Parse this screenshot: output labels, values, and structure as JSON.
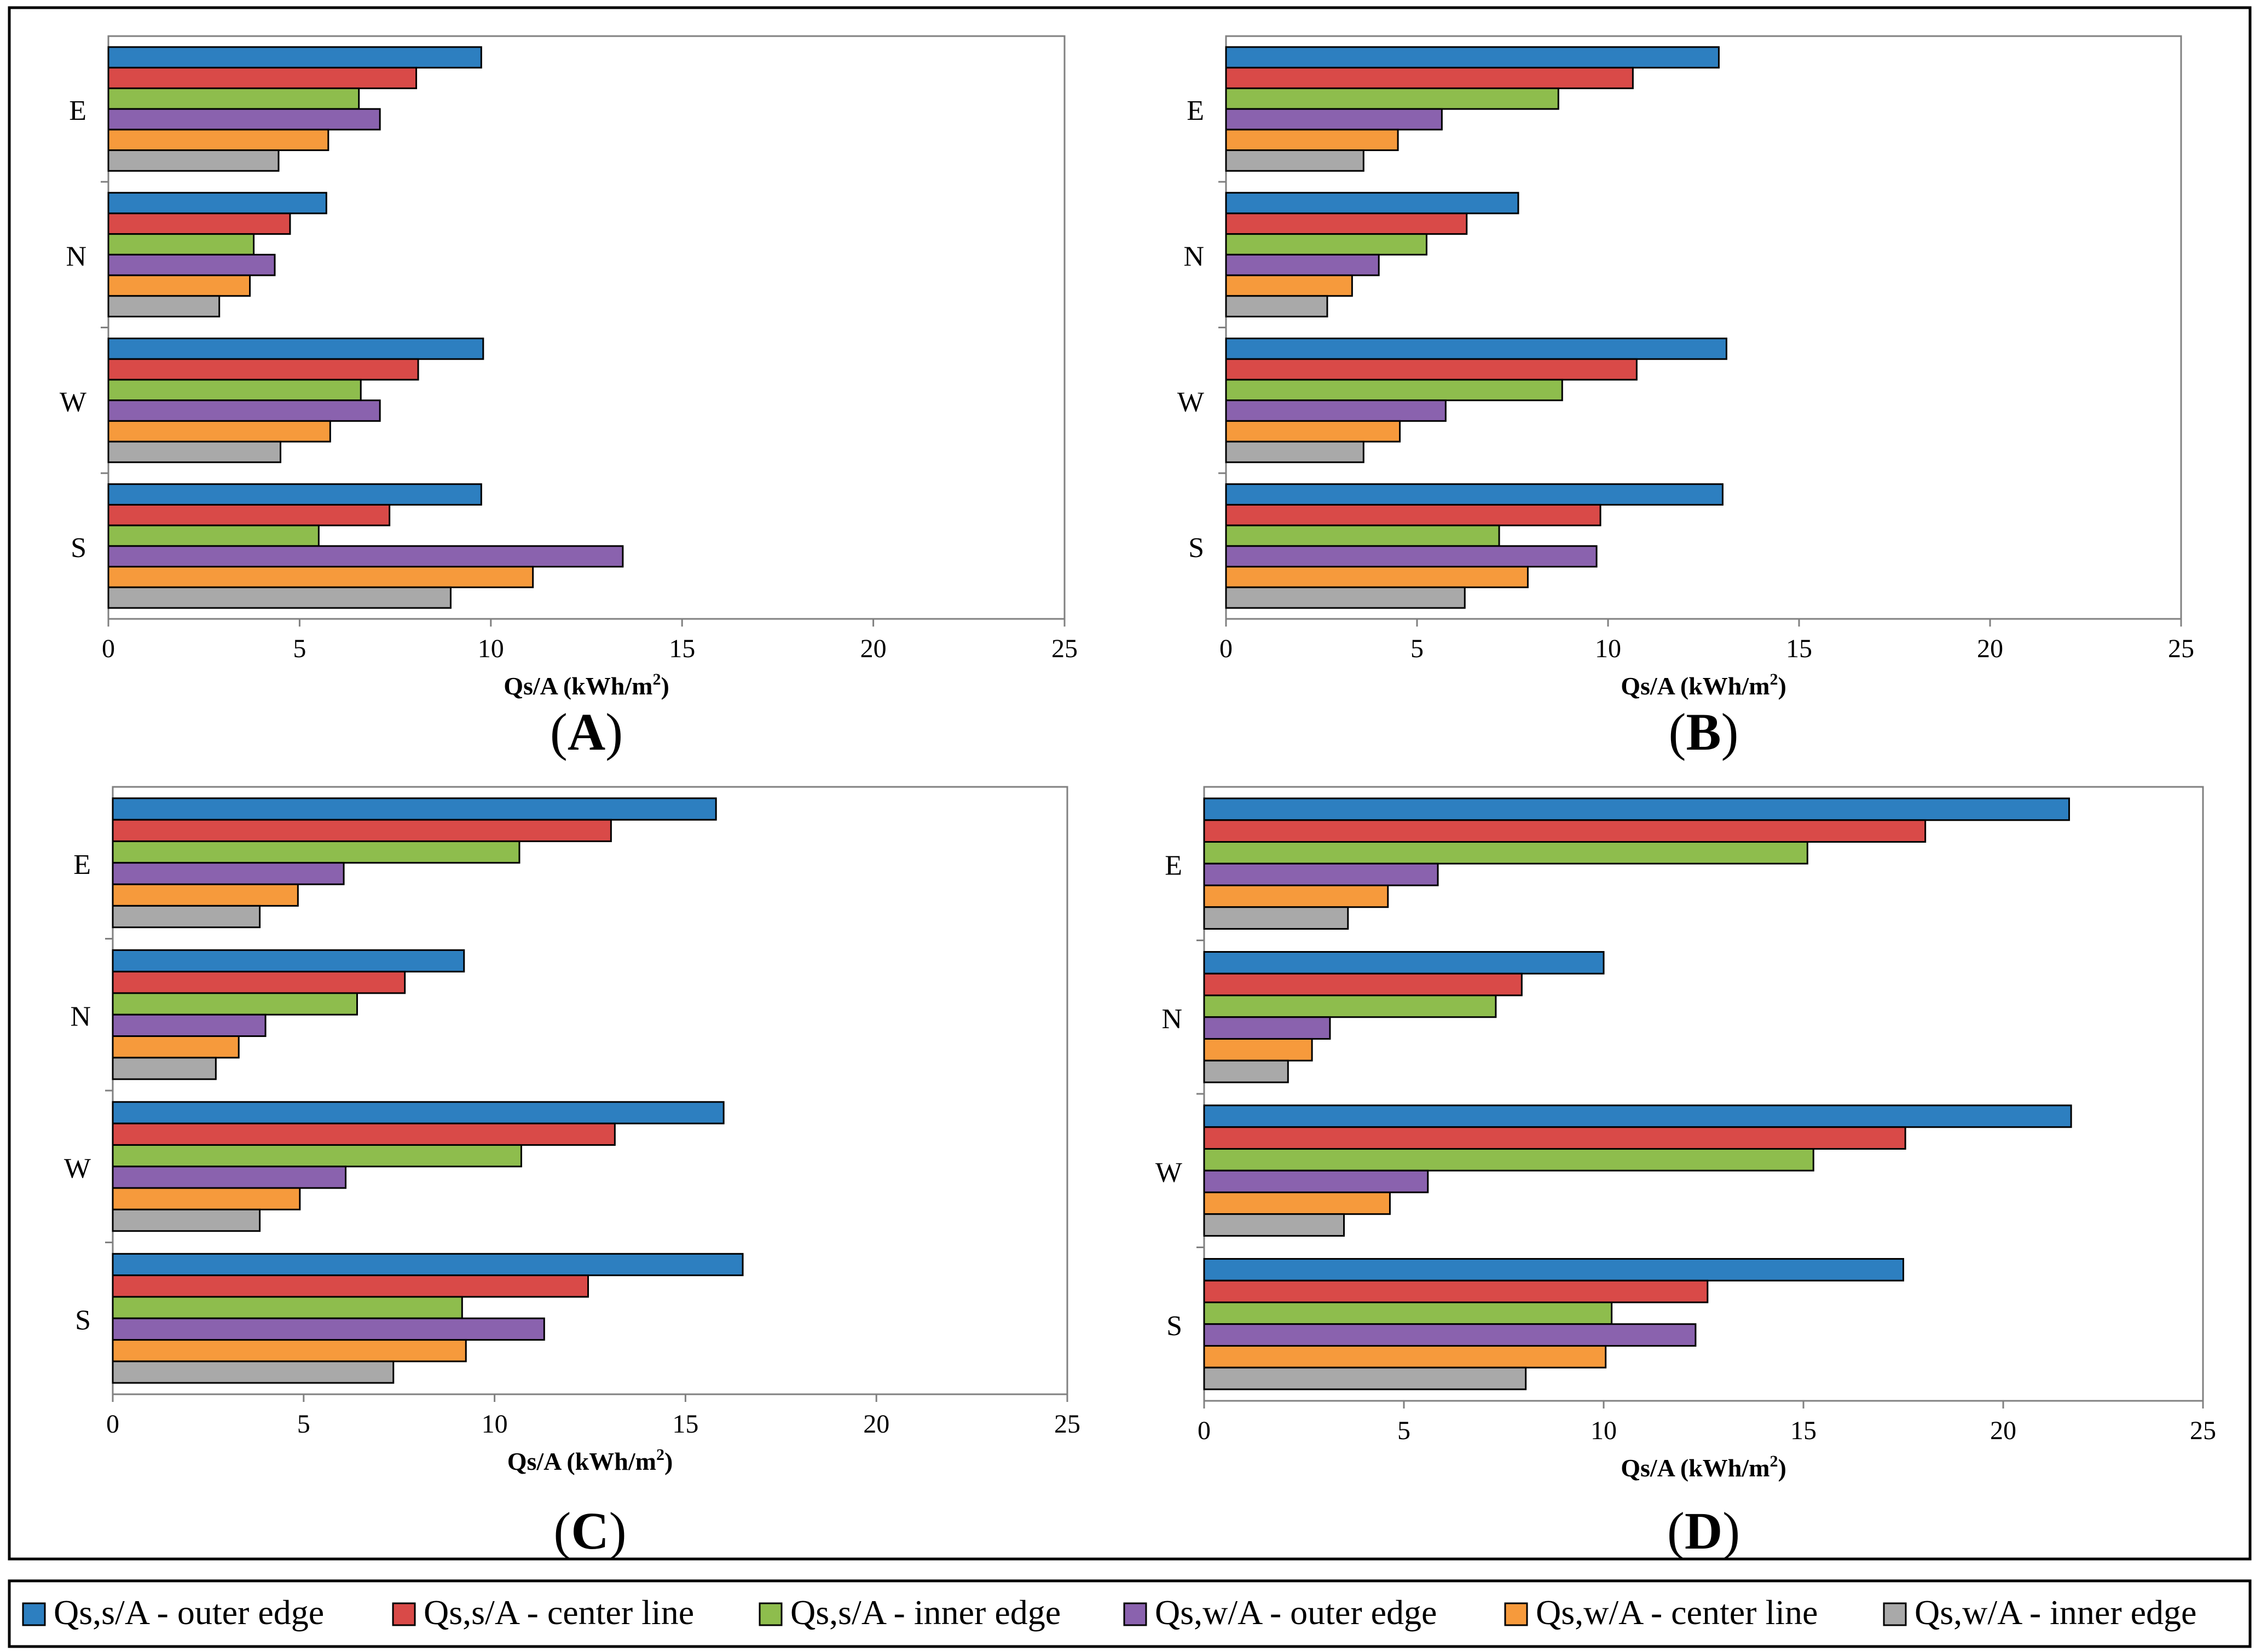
{
  "colors": {
    "series": [
      "#2d7fc0",
      "#d94a48",
      "#8ebd4d",
      "#8a62ae",
      "#f69a3c",
      "#a9a9a9"
    ],
    "axis": "#808080",
    "frame": "#000000"
  },
  "legend": {
    "items": [
      "Qs,s/A - outer edge",
      "Qs,s/A - center line",
      "Qs,s/A - inner edge",
      "Qs,w/A - outer edge",
      "Qs,w/A - center line",
      "Qs,w/A - inner edge"
    ]
  },
  "chart_data": [
    {
      "type": "bar",
      "orientation": "horizontal",
      "panel_label": "A",
      "categories": [
        "E",
        "N",
        "W",
        "S"
      ],
      "xlabel_main": "Qs/A (kWh/m",
      "xlabel_sup": "2",
      "xlabel_tail": ")",
      "xlim": [
        0,
        25
      ],
      "xticks": [
        "0",
        "5",
        "10",
        "15",
        "20",
        "25"
      ],
      "series": [
        {
          "name": "Qs,s/A - outer edge",
          "values": [
            9.75,
            5.7,
            9.8,
            9.75
          ]
        },
        {
          "name": "Qs,s/A - center line",
          "values": [
            8.05,
            4.75,
            8.1,
            7.35
          ]
        },
        {
          "name": "Qs,s/A - inner edge",
          "values": [
            6.55,
            3.8,
            6.6,
            5.5
          ]
        },
        {
          "name": "Qs,w/A - outer edge",
          "values": [
            7.1,
            4.35,
            7.1,
            13.45
          ]
        },
        {
          "name": "Qs,w/A - center line",
          "values": [
            5.75,
            3.7,
            5.8,
            11.1
          ]
        },
        {
          "name": "Qs,w/A - inner edge",
          "values": [
            4.45,
            2.9,
            4.5,
            8.95
          ]
        }
      ]
    },
    {
      "type": "bar",
      "orientation": "horizontal",
      "panel_label": "B",
      "categories": [
        "E",
        "N",
        "W",
        "S"
      ],
      "xlabel_main": "Qs/A (kWh/m",
      "xlabel_sup": "2",
      "xlabel_tail": ")",
      "xlim": [
        0,
        25
      ],
      "xticks": [
        "0",
        "5",
        "10",
        "15",
        "20",
        "25"
      ],
      "series": [
        {
          "name": "Qs,s/A - outer edge",
          "values": [
            12.9,
            7.65,
            13.1,
            13.0
          ]
        },
        {
          "name": "Qs,s/A - center line",
          "values": [
            10.65,
            6.3,
            10.75,
            9.8
          ]
        },
        {
          "name": "Qs,s/A - inner edge",
          "values": [
            8.7,
            5.25,
            8.8,
            7.15
          ]
        },
        {
          "name": "Qs,w/A - outer edge",
          "values": [
            5.65,
            4.0,
            5.75,
            9.7
          ]
        },
        {
          "name": "Qs,w/A - center line",
          "values": [
            4.5,
            3.3,
            4.55,
            7.9
          ]
        },
        {
          "name": "Qs,w/A - inner edge",
          "values": [
            3.6,
            2.65,
            3.6,
            6.25
          ]
        }
      ]
    },
    {
      "type": "bar",
      "orientation": "horizontal",
      "panel_label": "C",
      "categories": [
        "E",
        "N",
        "W",
        "S"
      ],
      "xlabel_main": "Qs/A (kWh/m",
      "xlabel_sup": "2",
      "xlabel_tail": ")",
      "xlim": [
        0,
        25
      ],
      "xticks": [
        "0",
        "5",
        "10",
        "15",
        "20",
        "25"
      ],
      "series": [
        {
          "name": "Qs,s/A - outer edge",
          "values": [
            15.8,
            9.2,
            16.0,
            16.5
          ]
        },
        {
          "name": "Qs,s/A - center line",
          "values": [
            13.05,
            7.65,
            13.15,
            12.45
          ]
        },
        {
          "name": "Qs,s/A - inner edge",
          "values": [
            10.65,
            6.4,
            10.7,
            9.15
          ]
        },
        {
          "name": "Qs,w/A - outer edge",
          "values": [
            6.05,
            4.0,
            6.1,
            11.3
          ]
        },
        {
          "name": "Qs,w/A - center line",
          "values": [
            4.85,
            3.3,
            4.9,
            9.25
          ]
        },
        {
          "name": "Qs,w/A - inner edge",
          "values": [
            3.85,
            2.7,
            3.85,
            7.35
          ]
        }
      ]
    },
    {
      "type": "bar",
      "orientation": "horizontal",
      "panel_label": "D",
      "categories": [
        "E",
        "N",
        "W",
        "S"
      ],
      "xlabel_main": "Qs/A (kWh/m",
      "xlabel_sup": "2",
      "xlabel_tail": ")",
      "xlim": [
        0,
        25
      ],
      "xticks": [
        "0",
        "5",
        "10",
        "15",
        "20",
        "25"
      ],
      "series": [
        {
          "name": "Qs,s/A - outer edge",
          "values": [
            21.65,
            10.0,
            21.7,
            17.5
          ]
        },
        {
          "name": "Qs,s/A - center line",
          "values": [
            18.05,
            7.95,
            17.55,
            12.6
          ]
        },
        {
          "name": "Qs,s/A - inner edge",
          "values": [
            15.1,
            7.3,
            15.25,
            10.2
          ]
        },
        {
          "name": "Qs,w/A - outer edge",
          "values": [
            5.85,
            3.15,
            5.6,
            12.3
          ]
        },
        {
          "name": "Qs,w/A - center line",
          "values": [
            4.6,
            2.7,
            4.65,
            10.05
          ]
        },
        {
          "name": "Qs,w/A - inner edge",
          "values": [
            3.6,
            2.1,
            3.5,
            8.05
          ]
        }
      ]
    }
  ]
}
